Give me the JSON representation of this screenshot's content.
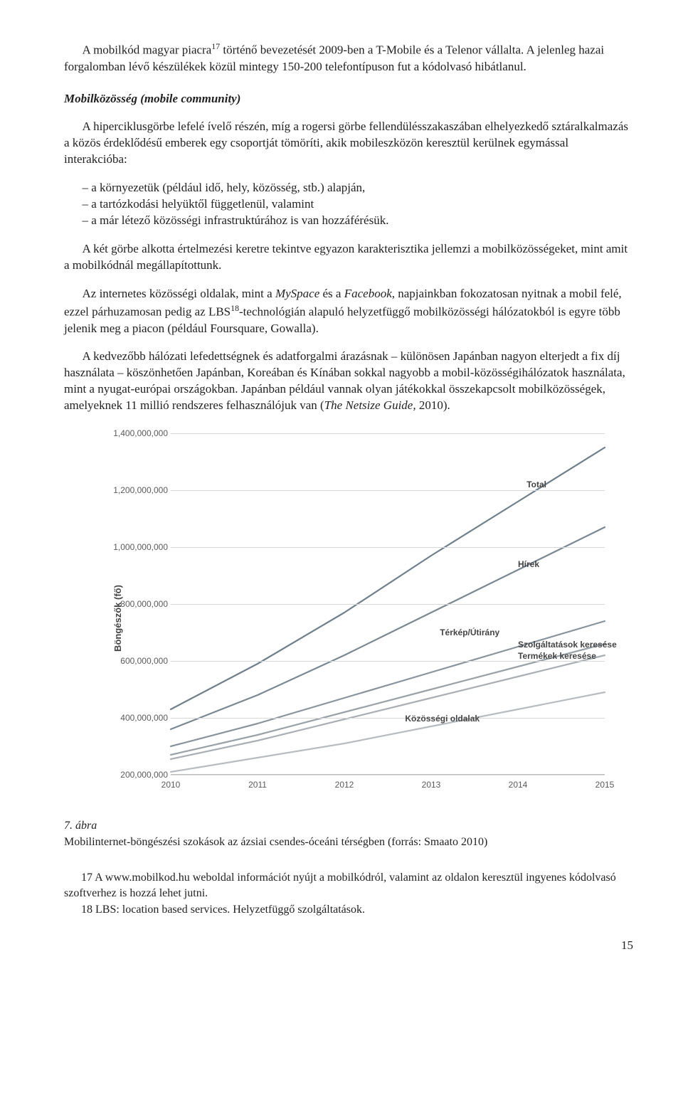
{
  "para1": "A mobilkód magyar piacra",
  "para1_sup": "17",
  "para1_cont": " történő bevezetését 2009-ben a T-Mobile és a Telenor vállalta. A jelenleg hazai forgalomban lévő készülékek közül mintegy 150-200 telefontípuson fut a kódolvasó hibátlanul.",
  "section_title": "Mobilközösség (mobile community)",
  "para2a": "A hiperciklusgörbe lefelé ívelő részén, míg a rogersi görbe fellendülésszakaszában elhelyezkedő sztáralkalmazás a közös érdeklődésű emberek egy csoportját tömöríti, akik mobileszközön keresztül kerülnek egymással interakcióba:",
  "bullet1": "– a környezetük (például idő, hely, közösség, stb.) alapján,",
  "bullet2": "– a tartózkodási helyüktől függetlenül, valamint",
  "bullet3": "– a már létező közösségi infrastruktúrához is van hozzáférésük.",
  "para3": "A két görbe alkotta értelmezési keretre tekintve egyazon karakterisztika jellemzi a mobilközösségeket, mint amit a mobilkódnál megállapítottunk.",
  "para4_a": "Az internetes közösségi oldalak, mint a ",
  "para4_ms": "MySpace",
  "para4_b": " és a ",
  "para4_fb": "Facebook",
  "para4_c": ", napjainkban fokozatosan nyitnak a mobil felé, ezzel párhuzamosan pedig az LBS",
  "para4_sup": "18",
  "para4_d": "-technológián alapuló helyzetfüggő mobilközösségi hálózatokból is egyre több jelenik meg a piacon (például Foursquare, Gowalla).",
  "para5_a": "A kedvezőbb hálózati lefedettségnek és adatforgalmi árazásnak – különösen Japánban nagyon elterjedt a fix díj használata – köszönhetően Japánban, Koreában és Kínában sokkal nagyobb a mobil-közösségihálózatok használata, mint a nyugat-európai országokban. Japánban például vannak olyan játékokkal összekapcsolt mobilközösségek, amelyeknek 11 millió rendszeres felhasználójuk van (",
  "para5_cite": "The Netsize Guide,",
  "para5_b": " 2010).",
  "chart": {
    "type": "line",
    "ylabel": "Böngészők (fő)",
    "xlim": [
      2010,
      2015
    ],
    "ylim": [
      200000000,
      1400000000
    ],
    "xticks": [
      2010,
      2011,
      2012,
      2013,
      2014,
      2015
    ],
    "yticks": [
      200000000,
      400000000,
      600000000,
      800000000,
      1000000000,
      1200000000,
      1400000000
    ],
    "ytick_labels": [
      "200,000,000",
      "400,000,000",
      "600,000,000",
      "800,000,000",
      "1,000,000,000",
      "1,200,000,000",
      "1,400,000,000"
    ],
    "grid_color": "#d8d8d8",
    "background_color": "#ffffff",
    "axis_label_color": "#5a5a5a",
    "series_label_color": "#444444",
    "line_width": 2.2,
    "series": [
      {
        "name": "Total",
        "label": "Total",
        "color": "#6f7f8c",
        "values": [
          [
            2010,
            430000000
          ],
          [
            2011,
            590000000
          ],
          [
            2012,
            770000000
          ],
          [
            2013,
            970000000
          ],
          [
            2014,
            1160000000
          ],
          [
            2015,
            1350000000
          ]
        ],
        "label_x": 2014.1,
        "label_y": 1240000000
      },
      {
        "name": "Hírek",
        "label": "Hírek",
        "color": "#7a8893",
        "values": [
          [
            2010,
            360000000
          ],
          [
            2011,
            480000000
          ],
          [
            2012,
            620000000
          ],
          [
            2013,
            770000000
          ],
          [
            2014,
            920000000
          ],
          [
            2015,
            1070000000
          ]
        ],
        "label_x": 2014.0,
        "label_y": 960000000
      },
      {
        "name": "Térkép/Útirány",
        "label": "Térkép/Útirány",
        "color": "#8a949c",
        "values": [
          [
            2010,
            300000000
          ],
          [
            2011,
            380000000
          ],
          [
            2012,
            470000000
          ],
          [
            2013,
            560000000
          ],
          [
            2014,
            650000000
          ],
          [
            2015,
            740000000
          ]
        ],
        "label_x": 2013.1,
        "label_y": 720000000
      },
      {
        "name": "Szolgáltatások keresése",
        "label": "Szolgáltatások keresése",
        "color": "#9aa2a8",
        "values": [
          [
            2010,
            270000000
          ],
          [
            2011,
            340000000
          ],
          [
            2012,
            420000000
          ],
          [
            2013,
            500000000
          ],
          [
            2014,
            580000000
          ],
          [
            2015,
            660000000
          ]
        ],
        "label_x": 2014.0,
        "label_y": 677000000
      },
      {
        "name": "Termékek keresése",
        "label": "Termékek keresése",
        "color": "#a9afb4",
        "values": [
          [
            2010,
            255000000
          ],
          [
            2011,
            320000000
          ],
          [
            2012,
            395000000
          ],
          [
            2013,
            470000000
          ],
          [
            2014,
            545000000
          ],
          [
            2015,
            620000000
          ]
        ],
        "label_x": 2014.0,
        "label_y": 637000000
      },
      {
        "name": "Közösségi oldalak",
        "label": "Közösségi oldalak",
        "color": "#b8bcc0",
        "values": [
          [
            2010,
            210000000
          ],
          [
            2011,
            260000000
          ],
          [
            2012,
            310000000
          ],
          [
            2013,
            370000000
          ],
          [
            2014,
            430000000
          ],
          [
            2015,
            490000000
          ]
        ],
        "label_x": 2012.7,
        "label_y": 418000000
      }
    ]
  },
  "caption_num": "7. ábra",
  "caption_text": "Mobilinternet-böngészési szokások az ázsiai csendes-óceáni térségben (forrás: Smaato 2010)",
  "footnote17": "17 A www.mobilkod.hu weboldal információt nyújt a mobilkódról, valamint az oldalon keresztül ingyenes kódolvasó szoftverhez is hozzá lehet jutni.",
  "footnote18": "18 LBS: location based services. Helyzetfüggő szolgáltatások.",
  "page_num": "15"
}
